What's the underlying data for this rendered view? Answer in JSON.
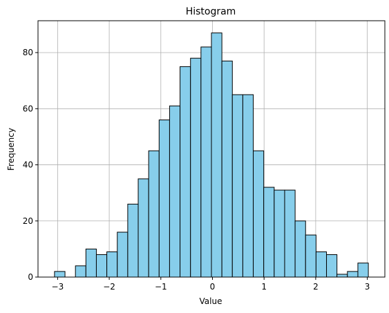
{
  "chart_data": {
    "type": "bar",
    "title": "Histogram",
    "xlabel": "Value",
    "ylabel": "Frequency",
    "bin_min": -3.06,
    "bin_max": 3.02,
    "bin_count": 30,
    "counts": [
      2,
      0,
      4,
      10,
      8,
      9,
      16,
      26,
      35,
      45,
      56,
      61,
      75,
      78,
      82,
      87,
      77,
      65,
      65,
      45,
      32,
      31,
      31,
      20,
      15,
      9,
      8,
      1,
      2,
      5
    ],
    "xlim": [
      -3.38,
      3.34
    ],
    "ylim": [
      0,
      91.35
    ],
    "x_ticks": [
      -3,
      -2,
      -1,
      0,
      1,
      2,
      3
    ],
    "x_tick_labels": [
      "−3",
      "−2",
      "−1",
      "0",
      "1",
      "2",
      "3"
    ],
    "y_ticks": [
      0,
      20,
      40,
      60,
      80
    ],
    "y_tick_labels": [
      "0",
      "20",
      "40",
      "60",
      "80"
    ],
    "grid": true,
    "bar_color": "#87ceeb",
    "edge_color": "#000000",
    "grid_color": "#b0b0b0"
  }
}
